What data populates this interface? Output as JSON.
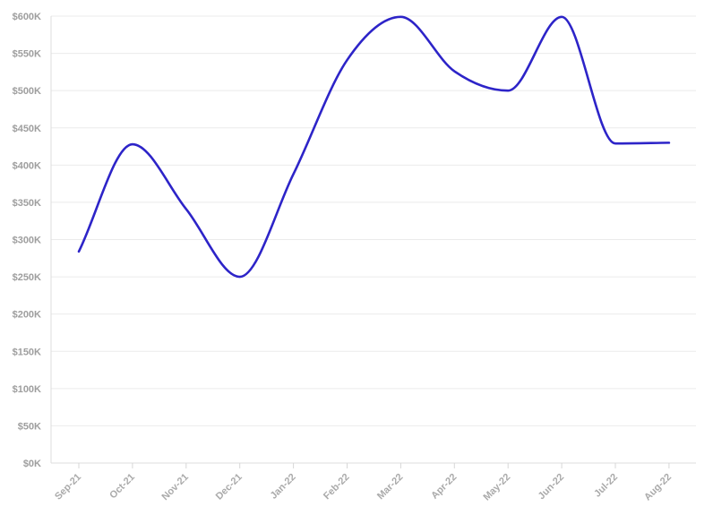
{
  "chart_data": {
    "type": "line",
    "categories": [
      "Sep-21",
      "Oct-21",
      "Nov-21",
      "Dec-21",
      "Jan-22",
      "Feb-22",
      "Mar-22",
      "Apr-22",
      "May-22",
      "Jun-22",
      "Jul-22",
      "Aug-22"
    ],
    "series": [
      {
        "values": [
          284000,
          428000,
          341000,
          250000,
          388000,
          541000,
          599000,
          526000,
          500000,
          599000,
          429000,
          430000
        ]
      }
    ],
    "ylim": [
      0,
      600000
    ],
    "y_ticks": [
      "$0K",
      "$50K",
      "$100K",
      "$150K",
      "$200K",
      "$250K",
      "$300K",
      "$350K",
      "$400K",
      "$450K",
      "$500K",
      "$550K",
      "$600K"
    ],
    "grid": "horizontal",
    "line_color": "#2d24c8"
  }
}
